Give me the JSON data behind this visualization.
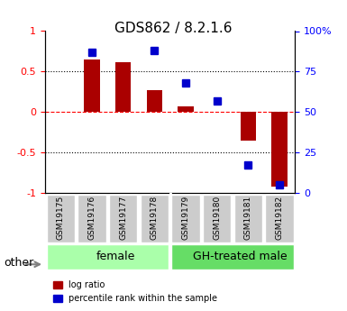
{
  "title": "GDS862 / 8.2.1.6",
  "samples": [
    "GSM19175",
    "GSM19176",
    "GSM19177",
    "GSM19178",
    "GSM19179",
    "GSM19180",
    "GSM19181",
    "GSM19182"
  ],
  "log_ratio": [
    0.0,
    0.65,
    0.62,
    0.27,
    0.07,
    0.0,
    -0.35,
    -0.92
  ],
  "percentile_rank": [
    null,
    87,
    null,
    88,
    68,
    57,
    17,
    5
  ],
  "groups": [
    {
      "label": "female",
      "start": 0,
      "end": 3,
      "color": "#aaffaa"
    },
    {
      "label": "GH-treated male",
      "start": 4,
      "end": 7,
      "color": "#66dd66"
    }
  ],
  "bar_color": "#aa0000",
  "dot_color": "#0000cc",
  "ylim_left": [
    -1,
    1
  ],
  "ylim_right": [
    0,
    100
  ],
  "yticks_left": [
    -1,
    -0.5,
    0,
    0.5,
    1
  ],
  "yticks_right": [
    0,
    25,
    50,
    75,
    100
  ],
  "ytick_labels_right": [
    "0",
    "25",
    "50",
    "75",
    "100%"
  ],
  "hline_dotted": [
    0.5,
    0,
    -0.5
  ],
  "hline_dashed": [
    0
  ],
  "legend_items": [
    "log ratio",
    "percentile rank within the sample"
  ],
  "other_label": "other"
}
